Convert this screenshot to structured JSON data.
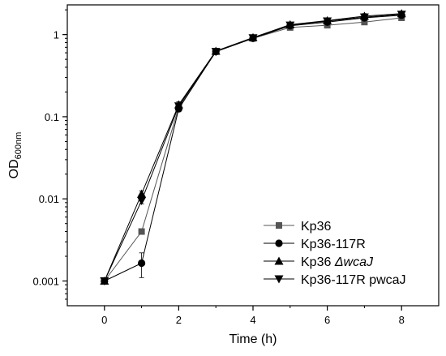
{
  "chart_data": {
    "type": "line",
    "xlabel": "Time (h)",
    "ylabel": {
      "main": "OD",
      "sub": "600nm"
    },
    "xlim": [
      -1,
      9
    ],
    "ylim": [
      0.0005,
      2.3
    ],
    "yscale": "log",
    "x_ticks": [
      0,
      2,
      4,
      6,
      8
    ],
    "x_tick_labels": [
      "0",
      "2",
      "4",
      "6",
      "8"
    ],
    "y_ticks": [
      0.001,
      0.01,
      0.1,
      1
    ],
    "y_tick_labels": [
      "0.001",
      "0.01",
      "0.1",
      "1"
    ],
    "x": [
      0,
      1,
      2,
      3,
      4,
      5,
      6,
      7,
      8
    ],
    "grid": false,
    "legend_position": "bottom-right",
    "series": [
      {
        "name": "Kp36",
        "marker": "square",
        "color": "#555555",
        "values": [
          0.001,
          0.004,
          0.13,
          0.62,
          0.9,
          1.22,
          1.3,
          1.42,
          1.6
        ],
        "errors": [
          5e-05,
          0.0003,
          0.01,
          0.03,
          0.04,
          0.06,
          0.07,
          0.08,
          0.1
        ]
      },
      {
        "name": "Kp36-117R",
        "marker": "circle",
        "color": "#000000",
        "values": [
          0.001,
          0.00165,
          0.125,
          0.62,
          0.9,
          1.28,
          1.42,
          1.6,
          1.72
        ],
        "errors": [
          5e-05,
          0.00055,
          0.01,
          0.03,
          0.04,
          0.07,
          0.08,
          0.1,
          0.1
        ]
      },
      {
        "name": "Kp36 ",
        "name_italic": "ΔwcaJ",
        "marker": "triangle-up",
        "color": "#000000",
        "values": [
          0.001,
          0.0115,
          0.14,
          0.63,
          0.92,
          1.32,
          1.48,
          1.68,
          1.8
        ],
        "errors": [
          5e-05,
          0.001,
          0.012,
          0.03,
          0.04,
          0.07,
          0.08,
          0.12,
          0.1
        ]
      },
      {
        "name": "Kp36-117R pwcaJ",
        "marker": "triangle-down",
        "color": "#000000",
        "values": [
          0.001,
          0.0095,
          0.135,
          0.62,
          0.91,
          1.3,
          1.46,
          1.63,
          1.76
        ],
        "errors": [
          5e-05,
          0.0008,
          0.012,
          0.03,
          0.04,
          0.07,
          0.08,
          0.12,
          0.1
        ]
      }
    ]
  }
}
